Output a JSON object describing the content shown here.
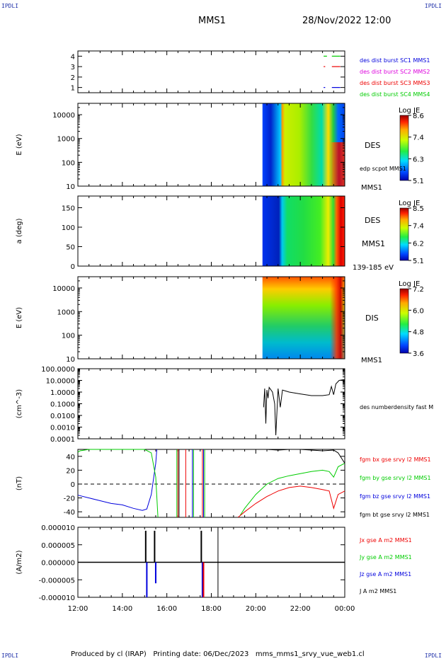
{
  "header": {
    "corner_tl": "IPDLI",
    "corner_tr": "IPDLI",
    "corner_bl": "IPDLI",
    "corner_br": "IPDLI",
    "spacecraft": "MMS1",
    "datetime": "28/Nov/2022 12:00"
  },
  "footer": {
    "text": "Produced by cl (IRAP)   Printing date: 06/Dec/2023   mms_mms1_srvy_vue_web1.cl"
  },
  "colors": {
    "blue": "#0000dd",
    "magenta": "#dd00dd",
    "red": "#ee0000",
    "green": "#00cc00",
    "black": "#000000"
  },
  "chart_data": [
    {
      "type": "line",
      "panel": "burst",
      "ylim": [
        0.5,
        4.5
      ],
      "yticks": [
        "1",
        "2",
        "3",
        "4"
      ],
      "legend": [
        {
          "name": "des dist burst SC1 MMS1",
          "color": "#0000dd"
        },
        {
          "name": "des dist burst SC2 MMS2",
          "color": "#dd00dd"
        },
        {
          "name": "des dist burst SC3 MMS3",
          "color": "#ee0000"
        },
        {
          "name": "des dist burst SC4 MMS4",
          "color": "#00cc00"
        }
      ],
      "series": [
        {
          "level": 4,
          "color": "#00cc00",
          "x": [
            23.05,
            23.2,
            23.42,
            23.8
          ]
        },
        {
          "level": 3,
          "color": "#ee0000",
          "x": [
            23.05,
            23.12,
            23.42,
            23.8
          ]
        },
        {
          "level": 1,
          "color": "#0000dd",
          "x": [
            23.05,
            23.12,
            23.42,
            23.8
          ]
        }
      ]
    },
    {
      "type": "heatmap",
      "panel": "des_energy",
      "ylabel": "E (eV)",
      "yscale": "log",
      "ylim": [
        10,
        30000
      ],
      "yticks": [
        "10",
        "100",
        "1000",
        "10000"
      ],
      "label": "DES",
      "sublabel": "edp scpot MMS1",
      "bottom_label": "MMS1",
      "colorbar": {
        "title": "Log JE",
        "ticks": [
          "8.6",
          "7.4",
          "6.3",
          "5.1"
        ],
        "min": 5.1,
        "max": 8.6
      }
    },
    {
      "type": "heatmap",
      "panel": "des_pitch",
      "ylabel": "a (deg)",
      "ylim": [
        0,
        180
      ],
      "yticks": [
        "0",
        "50",
        "100",
        "150"
      ],
      "label": "DES",
      "sublabel": "MMS1",
      "bottom_label": "139-185 eV",
      "colorbar": {
        "title": "Log JE",
        "ticks": [
          "8.5",
          "7.4",
          "6.2",
          "5.1"
        ],
        "min": 5.1,
        "max": 8.5
      }
    },
    {
      "type": "heatmap",
      "panel": "dis_energy",
      "ylabel": "E (eV)",
      "yscale": "log",
      "ylim": [
        10,
        30000
      ],
      "yticks": [
        "10",
        "100",
        "1000",
        "10000"
      ],
      "label": "DIS",
      "bottom_label": "MMS1",
      "colorbar": {
        "title": "Log JE",
        "ticks": [
          "7.2",
          "6.0",
          "4.8",
          "3.6"
        ],
        "min": 3.6,
        "max": 7.2
      }
    },
    {
      "type": "line",
      "panel": "density",
      "ylabel": "(cm^-3)",
      "yscale": "log",
      "ylim": [
        0.0001,
        100
      ],
      "yticks": [
        "0.0001",
        "0.0010",
        "0.0100",
        "0.1000",
        "1.0000",
        "10.0000",
        "100.0000"
      ],
      "legend": [
        {
          "name": "des numberdensity fast M",
          "color": "#000000"
        }
      ],
      "series": [
        {
          "name": "des numberdensity fast M",
          "color": "#000000",
          "x": [
            20.35,
            20.4,
            20.45,
            20.5,
            20.55,
            20.6,
            20.75,
            20.85,
            20.9,
            21.0,
            21.1,
            21.2,
            21.5,
            22.0,
            22.5,
            23.0,
            23.3,
            23.4,
            23.5,
            23.6,
            23.75,
            24.0
          ],
          "y": [
            0.05,
            2.0,
            0.002,
            1.5,
            0.3,
            2.5,
            1.0,
            0.1,
            0.0002,
            2.0,
            0.05,
            1.5,
            1.0,
            0.7,
            0.5,
            0.5,
            0.6,
            3.0,
            0.6,
            5.0,
            10,
            12
          ]
        }
      ]
    },
    {
      "type": "line",
      "panel": "magnetic_field",
      "ylabel": "(nT)",
      "ylim": [
        -48,
        50
      ],
      "yticks": [
        "-40",
        "-20",
        "0",
        "20",
        "40"
      ],
      "legend": [
        {
          "name": "fgm bx gse srvy l2 MMS1",
          "color": "#ee0000"
        },
        {
          "name": "fgm by gse srvy l2 MMS1",
          "color": "#00cc00"
        },
        {
          "name": "fgm bz gse srvy l2 MMS1",
          "color": "#0000dd"
        },
        {
          "name": "fgm bt gse srvy l2 MMS1",
          "color": "#000000"
        }
      ],
      "series": [
        {
          "name": "fgm bz gse srvy l2 MMS1",
          "color": "#0000dd",
          "x": [
            12.0,
            12.5,
            13.0,
            13.5,
            14.0,
            14.5,
            14.9,
            15.1,
            15.3,
            15.5,
            15.55
          ],
          "y": [
            -16,
            -20,
            -24,
            -28,
            -30,
            -35,
            -38,
            -36,
            -15,
            30,
            52
          ]
        },
        {
          "name": "fgm by gse srvy l2 MMS1",
          "color": "#00cc00",
          "x": [
            12.0,
            12.1,
            12.5,
            13.0,
            13.5,
            14.0,
            14.5,
            15.0,
            15.3,
            15.5,
            15.6
          ],
          "y": [
            46,
            48,
            50,
            52,
            53,
            53,
            52,
            50,
            45,
            10,
            -55
          ]
        },
        {
          "name": "fgm by gse srvy l2 MMS1",
          "color": "#00cc00",
          "x": [
            19.3,
            19.5,
            20.0,
            20.5,
            21.0,
            21.5,
            22.0,
            22.5,
            23.0,
            23.3,
            23.5,
            23.7,
            24.0
          ],
          "y": [
            -45,
            -35,
            -15,
            0,
            8,
            12,
            15,
            18,
            20,
            18,
            10,
            25,
            30
          ]
        },
        {
          "name": "fgm bx gse srvy l2 MMS1",
          "color": "#ee0000",
          "x": [
            19.2,
            19.5,
            20.0,
            20.5,
            21.0,
            21.5,
            22.0,
            22.5,
            23.0,
            23.3,
            23.5,
            23.7,
            24.0
          ],
          "y": [
            -48,
            -40,
            -28,
            -18,
            -10,
            -5,
            -3,
            -5,
            -8,
            -10,
            -35,
            -15,
            -10
          ]
        },
        {
          "name": "fgm bt gse srvy l2 MMS1",
          "color": "#000000",
          "x": [
            20.0,
            20.5,
            21.0,
            21.5,
            22.0,
            22.5,
            23.0,
            23.5,
            23.7,
            24.0
          ],
          "y": [
            52,
            50,
            49,
            50,
            50,
            49,
            48,
            49,
            45,
            30
          ]
        }
      ],
      "vertical_lines": [
        {
          "x": 16.45,
          "color": "#00cc00"
        },
        {
          "x": 16.5,
          "color": "#ee0000"
        },
        {
          "x": 16.55,
          "color": "#000000"
        },
        {
          "x": 16.85,
          "color": "#ee0000"
        },
        {
          "x": 17.15,
          "color": "#0000dd"
        },
        {
          "x": 17.2,
          "color": "#00cc00"
        },
        {
          "x": 17.6,
          "color": "#ee0000"
        },
        {
          "x": 17.65,
          "color": "#0000dd"
        },
        {
          "x": 17.7,
          "color": "#00cc00"
        }
      ]
    },
    {
      "type": "line",
      "panel": "current_density",
      "ylabel": "(A/m2)",
      "ylim": [
        -0.0001,
        0.0001
      ],
      "yticks": [
        "-0.000010",
        "-0.000005",
        "0.000000",
        "0.000005",
        "0.000010"
      ],
      "legend": [
        {
          "name": "Jx gse A m2 MMS1",
          "color": "#ee0000"
        },
        {
          "name": "Jy gse A m2 MMS1",
          "color": "#00cc00"
        },
        {
          "name": "Jz gse A m2 MMS1",
          "color": "#0000dd"
        },
        {
          "name": "J A m2 MMS1",
          "color": "#000000"
        }
      ],
      "spikes": [
        {
          "x": 15.05,
          "y": 9e-05,
          "color": "#000000"
        },
        {
          "x": 15.1,
          "y": -0.0001,
          "color": "#0000dd"
        },
        {
          "x": 15.45,
          "y": 9e-05,
          "color": "#000000"
        },
        {
          "x": 15.5,
          "y": -6e-05,
          "color": "#0000dd"
        },
        {
          "x": 17.55,
          "y": 9e-05,
          "color": "#000000"
        },
        {
          "x": 17.6,
          "y": -0.0001,
          "color": "#0000dd"
        },
        {
          "x": 17.65,
          "y": -0.0001,
          "color": "#ee0000"
        }
      ],
      "vertical_lines": [
        {
          "x": 18.3,
          "color": "#000000"
        }
      ]
    }
  ],
  "xaxis": {
    "xlim": [
      12,
      24
    ],
    "ticks": [
      "12:00",
      "14:00",
      "16:00",
      "18:00",
      "20:00",
      "22:00",
      "00:00"
    ]
  }
}
